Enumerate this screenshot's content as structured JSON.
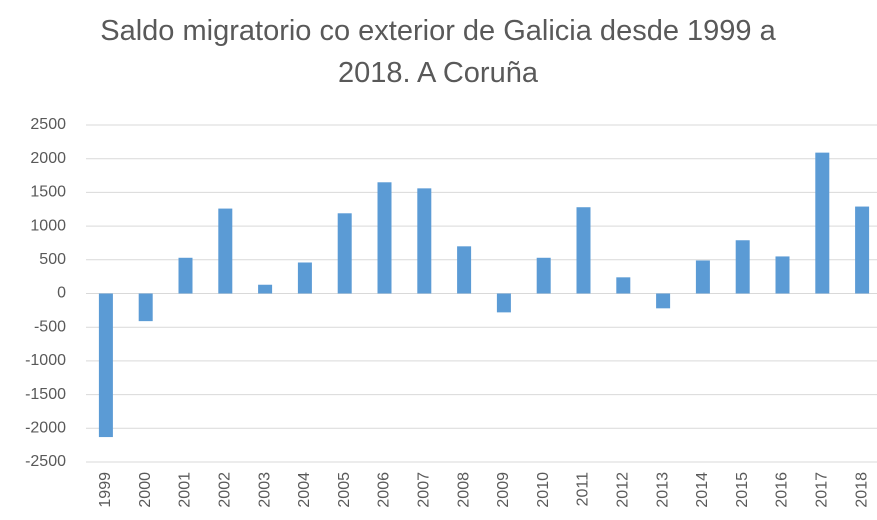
{
  "chart_data": {
    "type": "bar",
    "title": "Saldo migratorio co exterior de Galicia desde 1999 a 2018. A Coruña",
    "categories": [
      "1999",
      "2000",
      "2001",
      "2002",
      "2003",
      "2004",
      "2005",
      "2006",
      "2007",
      "2008",
      "2009",
      "2010",
      "2011",
      "2012",
      "2013",
      "2014",
      "2015",
      "2016",
      "2017",
      "2018"
    ],
    "values": [
      -2130,
      -410,
      530,
      1260,
      130,
      460,
      1190,
      1650,
      1560,
      700,
      -280,
      530,
      1280,
      240,
      -220,
      490,
      790,
      550,
      2090,
      1290
    ],
    "color": "#5b9bd5",
    "ylim": [
      -2500,
      2500
    ],
    "yticks": [
      -2500,
      -2000,
      -1500,
      -1000,
      -500,
      0,
      500,
      1000,
      1500,
      2000,
      2500
    ],
    "grid": true
  }
}
